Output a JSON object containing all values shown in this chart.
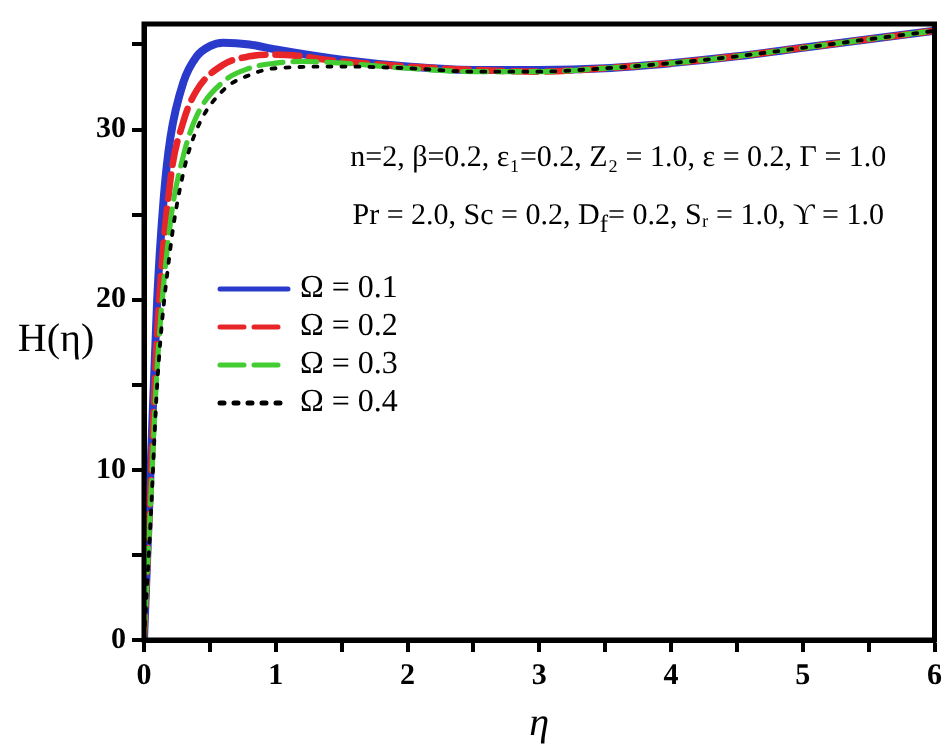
{
  "chart_data": {
    "type": "line",
    "xlabel": "η",
    "ylabel": "H(η)",
    "xlim": [
      0,
      6
    ],
    "xticks": [
      0,
      {
        "value": 0.5,
        "label": null
      },
      1,
      {
        "value": 1.5,
        "label": null
      },
      2,
      {
        "value": 2.5,
        "label": null
      },
      3,
      {
        "value": 3.5,
        "label": null
      },
      4,
      {
        "value": 4.5,
        "label": null
      },
      5,
      {
        "value": 5.5,
        "label": null
      },
      6
    ],
    "ylim": [
      0,
      36.2
    ],
    "yticks": [
      0,
      {
        "value": 5,
        "label": null
      },
      10,
      {
        "value": 15,
        "label": null
      },
      20,
      {
        "value": 25,
        "label": null
      },
      30,
      {
        "value": 35,
        "label": null
      }
    ],
    "grid": false,
    "legend": "left",
    "marker": "none",
    "annotations": [
      "n=2, β=0.2, ε₁=0.2, Z₂ = 1.0,  ε = 0.2, Γ = 1.0",
      "Pr = 2.0, Sc = 0.2, D$_{f}$= 0.2, Sᵣ = 1.0, ϒ = 1.0"
    ],
    "series": [
      {
        "name": "Ω = 0.1",
        "color": "#2a3bcc",
        "line_style": "solid",
        "x": [
          0,
          0.02,
          0.05,
          0.1,
          0.15,
          0.2,
          0.3,
          0.4,
          0.5,
          0.6,
          0.8,
          1,
          1.5,
          2,
          2.5,
          3,
          3.5,
          4,
          4.5,
          5,
          5.5,
          6
        ],
        "values": [
          0,
          4,
          10,
          20,
          26,
          29.5,
          32.8,
          34.3,
          34.9,
          35.1,
          35,
          34.7,
          34.1,
          33.7,
          33.5,
          33.5,
          33.6,
          33.9,
          34.3,
          34.8,
          35.3,
          35.8
        ]
      },
      {
        "name": "Ω = 0.2",
        "color": "#e8262a",
        "line_style": "dashed",
        "x": [
          0,
          0.05,
          0.1,
          0.2,
          0.3,
          0.4,
          0.6,
          0.8,
          1,
          1.5,
          2,
          2.5,
          3,
          3.5,
          4,
          4.5,
          5,
          5.5,
          6
        ],
        "values": [
          0,
          9,
          18,
          27,
          30.5,
          32.3,
          33.8,
          34.3,
          34.4,
          34,
          33.7,
          33.5,
          33.4,
          33.6,
          33.9,
          34.3,
          34.8,
          35.3,
          35.8
        ]
      },
      {
        "name": "Ω = 0.3",
        "color": "#44cc33",
        "line_style": "dashed",
        "x": [
          0,
          0.05,
          0.1,
          0.2,
          0.3,
          0.4,
          0.6,
          0.8,
          1,
          1.2,
          1.5,
          2,
          2.5,
          3,
          3.5,
          4,
          4.5,
          5,
          5.5,
          6
        ],
        "values": [
          0,
          8,
          16,
          24.5,
          28.5,
          30.8,
          32.8,
          33.6,
          33.9,
          34,
          33.9,
          33.6,
          33.4,
          33.4,
          33.6,
          33.9,
          34.3,
          34.8,
          35.3,
          35.8
        ]
      },
      {
        "name": "Ω = 0.4",
        "color": "#000000",
        "line_style": "dotted",
        "x": [
          0,
          0.05,
          0.1,
          0.2,
          0.3,
          0.4,
          0.6,
          0.8,
          1,
          1.5,
          2,
          2.5,
          3,
          3.5,
          4,
          4.5,
          5,
          5.5,
          6
        ],
        "values": [
          0,
          7,
          15,
          23,
          27.5,
          30,
          32.3,
          33.2,
          33.6,
          33.7,
          33.6,
          33.4,
          33.4,
          33.6,
          33.9,
          34.3,
          34.8,
          35.3,
          35.8
        ]
      }
    ]
  }
}
